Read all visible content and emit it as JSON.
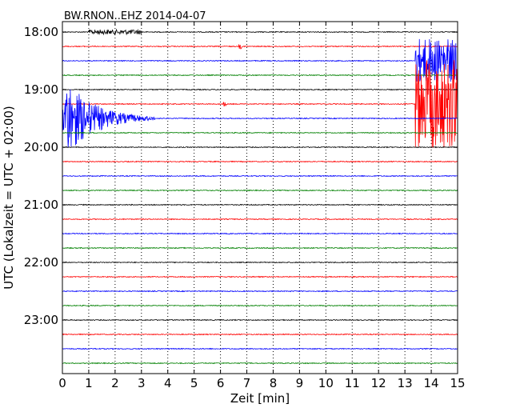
{
  "chart_data": {
    "type": "line",
    "title": "BW.RNON..EHZ 2014-04-07",
    "xlabel": "Zeit  [min]",
    "ylabel": "UTC (Lokalzeit = UTC + 02:00)",
    "xlim": [
      0,
      15
    ],
    "x_ticks": [
      "0",
      "1",
      "2",
      "3",
      "4",
      "5",
      "6",
      "7",
      "8",
      "9",
      "10",
      "11",
      "12",
      "13",
      "14",
      "15"
    ],
    "y_ticks": [
      "18:00",
      "19:00",
      "20:00",
      "21:00",
      "22:00",
      "23:00"
    ],
    "trace_start_utc": "18:00",
    "trace_interval_min": 15,
    "trace_count": 24,
    "grid": "vertical-dotted",
    "colors": [
      "#000000",
      "#ff0000",
      "#0000ff",
      "#008000"
    ],
    "events": [
      {
        "trace_start": "18:00",
        "x_min": [
          1,
          3
        ],
        "note": "small noise burst",
        "amplitude": "low"
      },
      {
        "trace_start": "18:15",
        "x_min": [
          6.7,
          6.8
        ],
        "note": "spike",
        "amplitude": "low"
      },
      {
        "trace_start": "18:30",
        "x_min": [
          13.4,
          15
        ],
        "note": "strong signal",
        "amplitude": "high"
      },
      {
        "trace_start": "19:15",
        "x_min": [
          6.1,
          6.2
        ],
        "note": "spike",
        "amplitude": "low"
      },
      {
        "trace_start": "19:30",
        "x_min": [
          0,
          3.5
        ],
        "note": "decaying earthquake coda",
        "amplitude": "very high"
      },
      {
        "trace_start": "19:15",
        "x_min": [
          13.4,
          15
        ],
        "note": "strong signal",
        "amplitude": "very high"
      }
    ]
  }
}
